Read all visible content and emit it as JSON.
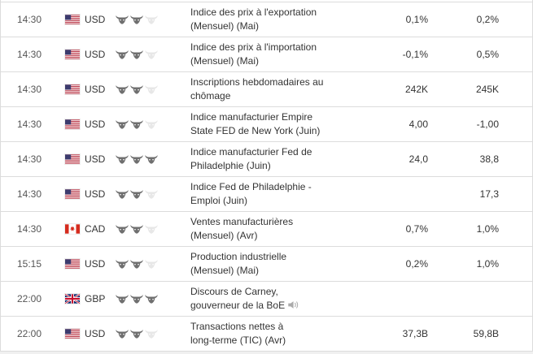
{
  "colors": {
    "bull_active": "#6f6f6f",
    "bull_inactive": "#e7e7e7",
    "row_border": "#dcdcdc",
    "text_primary": "#333333",
    "text_time": "#555555",
    "flag_us_red": "#b22234",
    "flag_us_blue": "#3c3b6e",
    "flag_ca_red": "#d52b1e",
    "flag_gb_blue": "#012169",
    "flag_gb_red": "#c8102e"
  },
  "rows": [
    {
      "time": "14:30",
      "flag": "us",
      "currency": "USD",
      "importance": 2,
      "event_lines": [
        "Indice des prix à l'exportation",
        "(Mensuel) (Mai)"
      ],
      "consensus": "0,1%",
      "previous": "0,2%"
    },
    {
      "time": "14:30",
      "flag": "us",
      "currency": "USD",
      "importance": 2,
      "event_lines": [
        "Indice des prix à l'importation",
        "(Mensuel) (Mai)"
      ],
      "consensus": "-0,1%",
      "previous": "0,5%"
    },
    {
      "time": "14:30",
      "flag": "us",
      "currency": "USD",
      "importance": 2,
      "event_lines": [
        "Inscriptions hebdomadaires au",
        "chômage"
      ],
      "consensus": "242K",
      "previous": "245K"
    },
    {
      "time": "14:30",
      "flag": "us",
      "currency": "USD",
      "importance": 2,
      "event_lines": [
        "Indice manufacturier Empire",
        "State FED de New York (Juin)"
      ],
      "consensus": "4,00",
      "previous": "-1,00"
    },
    {
      "time": "14:30",
      "flag": "us",
      "currency": "USD",
      "importance": 3,
      "event_lines": [
        "Indice manufacturier Fed de",
        "Philadelphie (Juin)"
      ],
      "consensus": "24,0",
      "previous": "38,8"
    },
    {
      "time": "14:30",
      "flag": "us",
      "currency": "USD",
      "importance": 2,
      "event_lines": [
        "Indice Fed de Philadelphie -",
        "Emploi (Juin)"
      ],
      "consensus": "",
      "previous": "17,3"
    },
    {
      "time": "14:30",
      "flag": "ca",
      "currency": "CAD",
      "importance": 2,
      "event_lines": [
        "Ventes manufacturières",
        "(Mensuel) (Avr)"
      ],
      "consensus": "0,7%",
      "previous": "1,0%"
    },
    {
      "time": "15:15",
      "flag": "us",
      "currency": "USD",
      "importance": 2,
      "event_lines": [
        "Production industrielle",
        "(Mensuel) (Mai)"
      ],
      "consensus": "0,2%",
      "previous": "1,0%"
    },
    {
      "time": "22:00",
      "flag": "gb",
      "currency": "GBP",
      "importance": 3,
      "event_lines": [
        "Discours de Carney,",
        "gouverneur de la BoE"
      ],
      "consensus": "",
      "previous": "",
      "speaker_icon": true
    },
    {
      "time": "22:00",
      "flag": "us",
      "currency": "USD",
      "importance": 2,
      "event_lines": [
        "Transactions nettes à",
        "long-terme (TIC) (Avr)"
      ],
      "consensus": "37,3B",
      "previous": "59,8B"
    }
  ]
}
